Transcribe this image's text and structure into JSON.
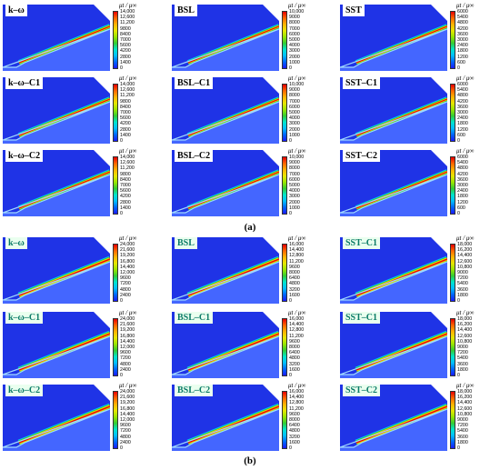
{
  "figure": {
    "part_a": {
      "label": "(a)",
      "panels": [
        {
          "label": "k–ω",
          "cbar_title": "μt / μ∞",
          "ticks": [
            "14,000",
            "12,600",
            "11,200",
            "9800",
            "8400",
            "7000",
            "5600",
            "4200",
            "2800",
            "1400",
            "0"
          ]
        },
        {
          "label": "BSL",
          "cbar_title": "μt / μ∞",
          "ticks": [
            "10,000",
            "9000",
            "8000",
            "7000",
            "6000",
            "5000",
            "4000",
            "3000",
            "2000",
            "1000",
            "0"
          ]
        },
        {
          "label": "SST",
          "cbar_title": "μt / μ∞",
          "ticks": [
            "6000",
            "5400",
            "4800",
            "4200",
            "3600",
            "3000",
            "2400",
            "1800",
            "1200",
            "600",
            "0"
          ]
        },
        {
          "label": "k–ω–C1",
          "cbar_title": "μt / μ∞",
          "ticks": [
            "14,000",
            "12,600",
            "11,200",
            "9800",
            "8400",
            "7000",
            "5600",
            "4200",
            "2800",
            "1400",
            "0"
          ]
        },
        {
          "label": "BSL–C1",
          "cbar_title": "μt / μ∞",
          "ticks": [
            "10,000",
            "9000",
            "8000",
            "7000",
            "6000",
            "5000",
            "4000",
            "3000",
            "2000",
            "1000",
            "0"
          ]
        },
        {
          "label": "SST–C1",
          "cbar_title": "μt / μ∞",
          "ticks": [
            "6000",
            "5400",
            "4800",
            "4200",
            "3600",
            "3000",
            "2400",
            "1800",
            "1200",
            "600",
            "0"
          ]
        },
        {
          "label": "k–ω–C2",
          "cbar_title": "μt / μ∞",
          "ticks": [
            "14,000",
            "12,600",
            "11,200",
            "9800",
            "8400",
            "7000",
            "5600",
            "4200",
            "2800",
            "1400",
            "0"
          ]
        },
        {
          "label": "BSL–C2",
          "cbar_title": "μt / μ∞",
          "ticks": [
            "10,000",
            "9000",
            "8000",
            "7000",
            "6000",
            "5000",
            "4000",
            "3000",
            "2000",
            "1000",
            "0"
          ]
        },
        {
          "label": "SST–C2",
          "cbar_title": "μt / μ∞",
          "ticks": [
            "6000",
            "5400",
            "4800",
            "4200",
            "3600",
            "3000",
            "2400",
            "1800",
            "1200",
            "600",
            "0"
          ]
        }
      ]
    },
    "part_b": {
      "label": "(b)",
      "panels": [
        {
          "label": "k–ω",
          "cbar_title": "μt / μ∞",
          "ticks": [
            "24,000",
            "21,600",
            "19,200",
            "16,800",
            "14,400",
            "12,000",
            "9600",
            "7200",
            "4800",
            "2400",
            "0"
          ]
        },
        {
          "label": "BSL",
          "cbar_title": "μt / μ∞",
          "ticks": [
            "16,000",
            "14,400",
            "12,800",
            "11,200",
            "9600",
            "8000",
            "6400",
            "4800",
            "3200",
            "1600",
            "0"
          ]
        },
        {
          "label": "SST–C1",
          "cbar_title": "μt / μ∞",
          "ticks": [
            "18,000",
            "16,200",
            "14,400",
            "12,600",
            "10,800",
            "9000",
            "7200",
            "5400",
            "3600",
            "1800",
            "0"
          ]
        },
        {
          "label": "k–ω–C1",
          "cbar_title": "μt / μ∞",
          "ticks": [
            "24,000",
            "21,600",
            "19,200",
            "16,800",
            "14,400",
            "12,000",
            "9600",
            "7200",
            "4800",
            "2400",
            "0"
          ]
        },
        {
          "label": "BSL–C1",
          "cbar_title": "μt / μ∞",
          "ticks": [
            "16,000",
            "14,400",
            "12,800",
            "11,200",
            "9600",
            "8000",
            "6400",
            "4800",
            "3200",
            "1600",
            "0"
          ]
        },
        {
          "label": "SST–C1",
          "cbar_title": "μt / μ∞",
          "ticks": [
            "18,000",
            "16,200",
            "14,400",
            "12,600",
            "10,800",
            "9000",
            "7200",
            "5400",
            "3600",
            "1800",
            "0"
          ]
        },
        {
          "label": "k–ω–C2",
          "cbar_title": "μt / μ∞",
          "ticks": [
            "24,000",
            "21,600",
            "19,200",
            "16,800",
            "14,400",
            "12,000",
            "9600",
            "7200",
            "4800",
            "2400",
            "0"
          ]
        },
        {
          "label": "BSL–C2",
          "cbar_title": "μt / μ∞",
          "ticks": [
            "16,000",
            "14,400",
            "12,800",
            "11,200",
            "9600",
            "8000",
            "6400",
            "4800",
            "3200",
            "1600",
            "0"
          ]
        },
        {
          "label": "SST–C2",
          "cbar_title": "μt / μ∞",
          "ticks": [
            "18,000",
            "16,200",
            "14,400",
            "12,600",
            "10,800",
            "9000",
            "7200",
            "5400",
            "3600",
            "1800",
            "0"
          ]
        }
      ]
    }
  },
  "colors": {
    "field_blue": "#1f33e6",
    "colormap": [
      "#1a1aff",
      "#0066ff",
      "#00bfff",
      "#00e5cc",
      "#33cc33",
      "#99e600",
      "#e6e600",
      "#ffb300",
      "#ff6600",
      "#e60000"
    ]
  }
}
